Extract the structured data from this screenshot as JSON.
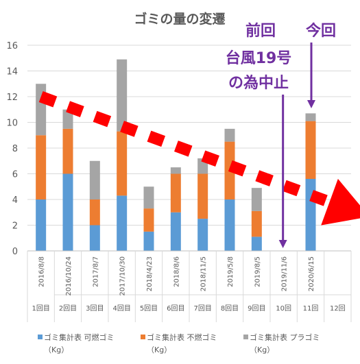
{
  "chart_data": {
    "type": "bar",
    "stacked": true,
    "title": "ゴミの量の変遷",
    "ylim": [
      0,
      16
    ],
    "yticks": [
      0,
      2,
      4,
      6,
      8,
      10,
      12,
      14,
      16
    ],
    "grid": true,
    "legend_position": "bottom",
    "categories": [
      "2016/8/8",
      "2016/10/24",
      "2017/8/7",
      "2017/10/30",
      "2018/4/23",
      "2018/8/6",
      "2018/11/5",
      "2019/5/8",
      "2019/8/5",
      "2019/11/6",
      "2020/6/15",
      ""
    ],
    "sessions": [
      "1回目",
      "2回目",
      "3回目",
      "4回目",
      "5回目",
      "6回目",
      "7回目",
      "8回目",
      "9回目",
      "10回",
      "11回",
      "12回"
    ],
    "series": [
      {
        "name": "ゴミ集計表 可燃ゴミ",
        "unit": "（Kg）",
        "color": "#5b9bd5",
        "values": [
          4.0,
          6.0,
          2.0,
          4.3,
          1.5,
          3.0,
          2.5,
          4.0,
          1.1,
          null,
          5.6,
          null
        ]
      },
      {
        "name": "ゴミ集計表 不燃ゴミ",
        "unit": "（Kg）",
        "color": "#ed7d31",
        "values": [
          5.0,
          3.5,
          2.0,
          5.0,
          1.8,
          3.0,
          3.5,
          4.5,
          2.0,
          null,
          4.5,
          null
        ]
      },
      {
        "name": "ゴミ集計表 プラゴミ",
        "unit": "（Kg）",
        "color": "#a5a5a5",
        "values": [
          4.0,
          1.5,
          3.0,
          5.6,
          1.7,
          0.5,
          1.2,
          1.0,
          1.8,
          null,
          0.6,
          null
        ]
      }
    ],
    "annotations": {
      "left_lines": [
        "前回",
        "台風19号",
        "の為中止"
      ],
      "right": "今回"
    },
    "trend": {
      "color": "#ff0000",
      "from": [
        0,
        12
      ],
      "to": [
        10.7,
        3.8
      ]
    },
    "annotation_color": "#7030a0"
  }
}
